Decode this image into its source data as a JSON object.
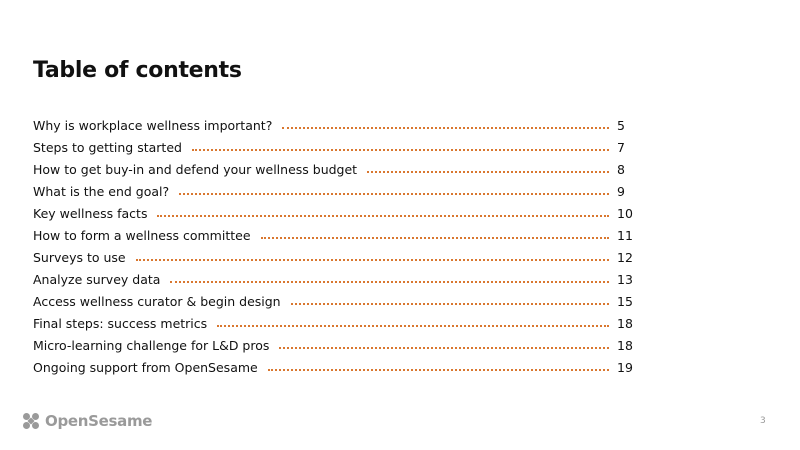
{
  "header": {
    "title": "Table of contents"
  },
  "entries": [
    {
      "label": "Why is workplace wellness important?",
      "page": "5"
    },
    {
      "label": "Steps to getting started",
      "page": "7"
    },
    {
      "label": "How to get buy-in and defend your wellness budget",
      "page": "8"
    },
    {
      "label": "What is the end goal?",
      "page": "9"
    },
    {
      "label": "Key wellness facts",
      "page": "10"
    },
    {
      "label": "How to form a wellness committee",
      "page": "11"
    },
    {
      "label": "Surveys to use",
      "page": "12"
    },
    {
      "label": "Analyze survey data",
      "page": "13"
    },
    {
      "label": "Access wellness curator & begin design",
      "page": "15"
    },
    {
      "label": "Final steps: success metrics",
      "page": "18"
    },
    {
      "label": "Micro-learning challenge for L&D pros",
      "page": "18"
    },
    {
      "label": "Ongoing support from OpenSesame",
      "page": "19"
    }
  ],
  "footer": {
    "brand": "OpenSesame",
    "page_number": "3"
  }
}
